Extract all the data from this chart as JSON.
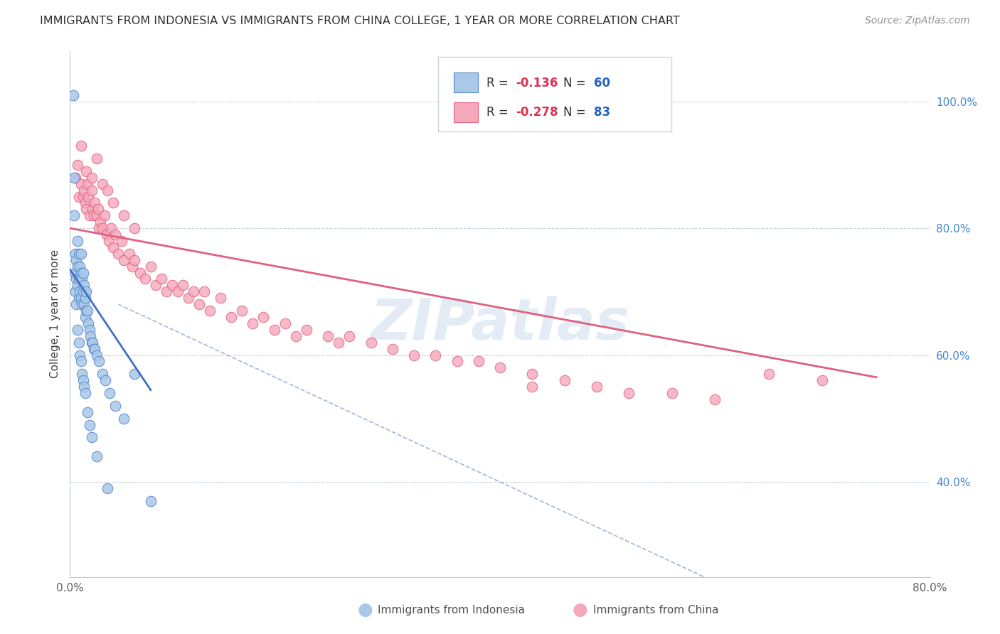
{
  "title": "IMMIGRANTS FROM INDONESIA VS IMMIGRANTS FROM CHINA COLLEGE, 1 YEAR OR MORE CORRELATION CHART",
  "source": "Source: ZipAtlas.com",
  "ylabel": "College, 1 year or more",
  "xlim": [
    0.0,
    0.8
  ],
  "ylim": [
    0.25,
    1.08
  ],
  "x_ticks": [
    0.0,
    0.1,
    0.2,
    0.3,
    0.4,
    0.5,
    0.6,
    0.7,
    0.8
  ],
  "x_tick_labels": [
    "0.0%",
    "",
    "",
    "",
    "",
    "",
    "",
    "",
    "80.0%"
  ],
  "y_ticks": [
    0.4,
    0.6,
    0.8,
    1.0
  ],
  "y_tick_labels": [
    "40.0%",
    "60.0%",
    "80.0%",
    "100.0%"
  ],
  "legend_blue_r": "-0.136",
  "legend_blue_n": "60",
  "legend_pink_r": "-0.278",
  "legend_pink_n": "83",
  "blue_color": "#aac8e8",
  "pink_color": "#f5a8bc",
  "blue_edge_color": "#5588cc",
  "pink_edge_color": "#e06080",
  "blue_line_color": "#4070c0",
  "pink_line_color": "#e06080",
  "dashed_line_color": "#a0b8d8",
  "watermark": "ZIPatlas",
  "blue_scatter_x": [
    0.003,
    0.004,
    0.004,
    0.005,
    0.005,
    0.005,
    0.006,
    0.006,
    0.006,
    0.007,
    0.007,
    0.007,
    0.008,
    0.008,
    0.008,
    0.009,
    0.009,
    0.01,
    0.01,
    0.01,
    0.011,
    0.011,
    0.012,
    0.012,
    0.013,
    0.013,
    0.014,
    0.014,
    0.015,
    0.015,
    0.016,
    0.017,
    0.018,
    0.019,
    0.02,
    0.021,
    0.022,
    0.023,
    0.025,
    0.027,
    0.03,
    0.033,
    0.037,
    0.042,
    0.05,
    0.06,
    0.007,
    0.008,
    0.009,
    0.01,
    0.011,
    0.012,
    0.013,
    0.014,
    0.016,
    0.018,
    0.02,
    0.025,
    0.035,
    0.075
  ],
  "blue_scatter_y": [
    1.01,
    0.88,
    0.82,
    0.76,
    0.73,
    0.7,
    0.75,
    0.72,
    0.68,
    0.78,
    0.74,
    0.71,
    0.76,
    0.72,
    0.69,
    0.74,
    0.7,
    0.76,
    0.73,
    0.69,
    0.72,
    0.68,
    0.73,
    0.7,
    0.71,
    0.68,
    0.69,
    0.66,
    0.7,
    0.67,
    0.67,
    0.65,
    0.64,
    0.63,
    0.62,
    0.62,
    0.61,
    0.61,
    0.6,
    0.59,
    0.57,
    0.56,
    0.54,
    0.52,
    0.5,
    0.57,
    0.64,
    0.62,
    0.6,
    0.59,
    0.57,
    0.56,
    0.55,
    0.54,
    0.51,
    0.49,
    0.47,
    0.44,
    0.39,
    0.37
  ],
  "pink_scatter_x": [
    0.005,
    0.007,
    0.008,
    0.01,
    0.01,
    0.012,
    0.013,
    0.014,
    0.015,
    0.016,
    0.017,
    0.018,
    0.02,
    0.021,
    0.022,
    0.023,
    0.025,
    0.026,
    0.027,
    0.028,
    0.03,
    0.032,
    0.034,
    0.036,
    0.038,
    0.04,
    0.042,
    0.045,
    0.048,
    0.05,
    0.055,
    0.058,
    0.06,
    0.065,
    0.07,
    0.075,
    0.08,
    0.085,
    0.09,
    0.095,
    0.1,
    0.105,
    0.11,
    0.115,
    0.12,
    0.125,
    0.13,
    0.14,
    0.15,
    0.16,
    0.17,
    0.18,
    0.19,
    0.2,
    0.21,
    0.22,
    0.24,
    0.25,
    0.26,
    0.28,
    0.3,
    0.32,
    0.34,
    0.36,
    0.38,
    0.4,
    0.43,
    0.46,
    0.49,
    0.52,
    0.56,
    0.6,
    0.65,
    0.7,
    0.015,
    0.02,
    0.025,
    0.03,
    0.035,
    0.04,
    0.05,
    0.06,
    0.43
  ],
  "pink_scatter_y": [
    0.88,
    0.9,
    0.85,
    0.93,
    0.87,
    0.85,
    0.86,
    0.84,
    0.83,
    0.87,
    0.85,
    0.82,
    0.86,
    0.83,
    0.82,
    0.84,
    0.82,
    0.83,
    0.8,
    0.81,
    0.8,
    0.82,
    0.79,
    0.78,
    0.8,
    0.77,
    0.79,
    0.76,
    0.78,
    0.75,
    0.76,
    0.74,
    0.75,
    0.73,
    0.72,
    0.74,
    0.71,
    0.72,
    0.7,
    0.71,
    0.7,
    0.71,
    0.69,
    0.7,
    0.68,
    0.7,
    0.67,
    0.69,
    0.66,
    0.67,
    0.65,
    0.66,
    0.64,
    0.65,
    0.63,
    0.64,
    0.63,
    0.62,
    0.63,
    0.62,
    0.61,
    0.6,
    0.6,
    0.59,
    0.59,
    0.58,
    0.57,
    0.56,
    0.55,
    0.54,
    0.54,
    0.53,
    0.57,
    0.56,
    0.89,
    0.88,
    0.91,
    0.87,
    0.86,
    0.84,
    0.82,
    0.8,
    0.55
  ],
  "blue_line_x": [
    0.0,
    0.075
  ],
  "blue_line_y": [
    0.735,
    0.545
  ],
  "pink_line_x": [
    0.0,
    0.75
  ],
  "pink_line_y": [
    0.8,
    0.565
  ],
  "dashed_line_x": [
    0.045,
    0.78
  ],
  "dashed_line_y": [
    0.68,
    0.1
  ]
}
